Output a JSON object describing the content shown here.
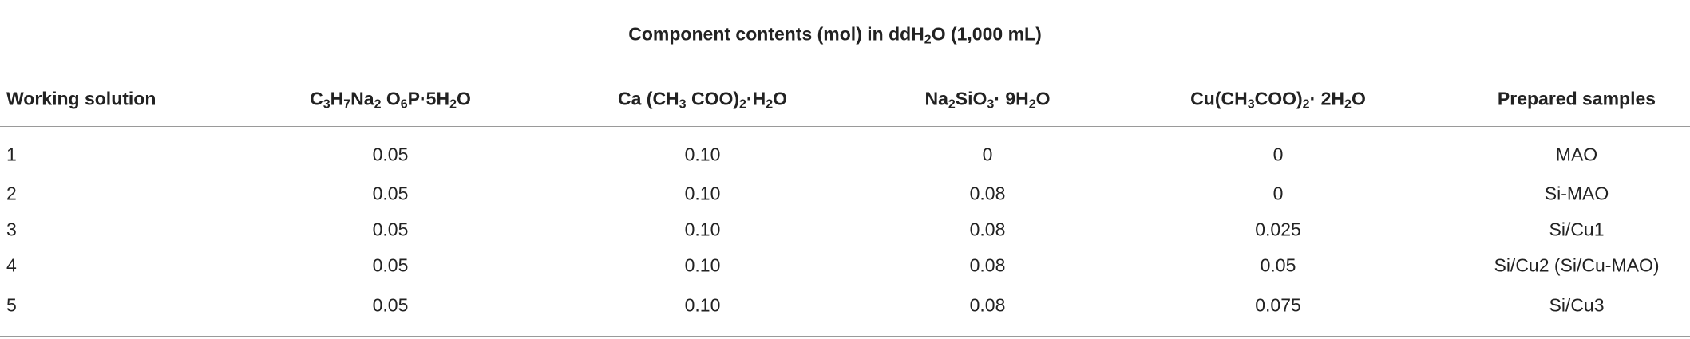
{
  "table": {
    "group_header": [
      "Component contents (mol) in ddH",
      "2",
      "O (1,000 mL)"
    ],
    "columns": [
      [
        "Working solution"
      ],
      [
        "C",
        "3",
        "H",
        "7",
        "Na",
        "2",
        " O",
        "6",
        "P·5H",
        "2",
        "O"
      ],
      [
        "Ca (CH",
        "3",
        " COO)",
        "2",
        "·H",
        "2",
        "O"
      ],
      [
        "Na",
        "2",
        "SiO",
        "3",
        "· 9H",
        "2",
        "O"
      ],
      [
        "Cu(CH",
        "3",
        "COO)",
        "2",
        "· 2H",
        "2",
        "O"
      ],
      [
        "Prepared samples"
      ]
    ],
    "rows": [
      [
        "1",
        "0.05",
        "0.10",
        "0",
        "0",
        "MAO"
      ],
      [
        "2",
        "0.05",
        "0.10",
        "0.08",
        "0",
        "Si-MAO"
      ],
      [
        "3",
        "0.05",
        "0.10",
        "0.08",
        "0.025",
        "Si/Cu1"
      ],
      [
        "4",
        "0.05",
        "0.10",
        "0.08",
        "0.05",
        "Si/Cu2 (Si/Cu-MAO)"
      ],
      [
        "5",
        "0.05",
        "0.10",
        "0.08",
        "0.075",
        "Si/Cu3"
      ]
    ]
  }
}
